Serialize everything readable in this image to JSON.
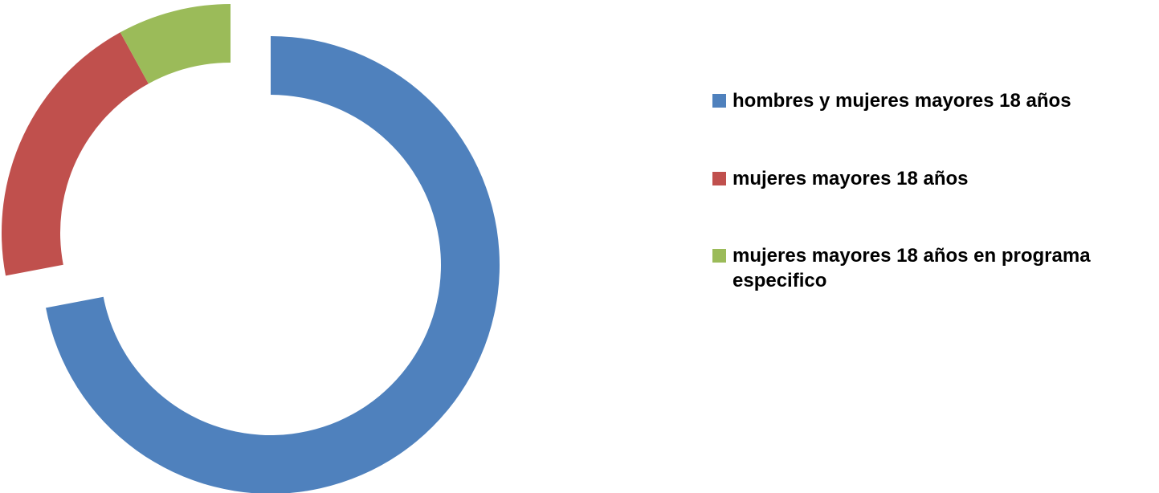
{
  "chart_data": {
    "type": "donut",
    "categories": [
      "hombres y mujeres mayores 18 años",
      "mujeres mayores 18 años",
      "mujeres mayores 18 años en programa especifico"
    ],
    "values": [
      72,
      20,
      8
    ],
    "colors": [
      "#4f81bd",
      "#c0504d",
      "#9bbb59"
    ],
    "legend": "right"
  }
}
